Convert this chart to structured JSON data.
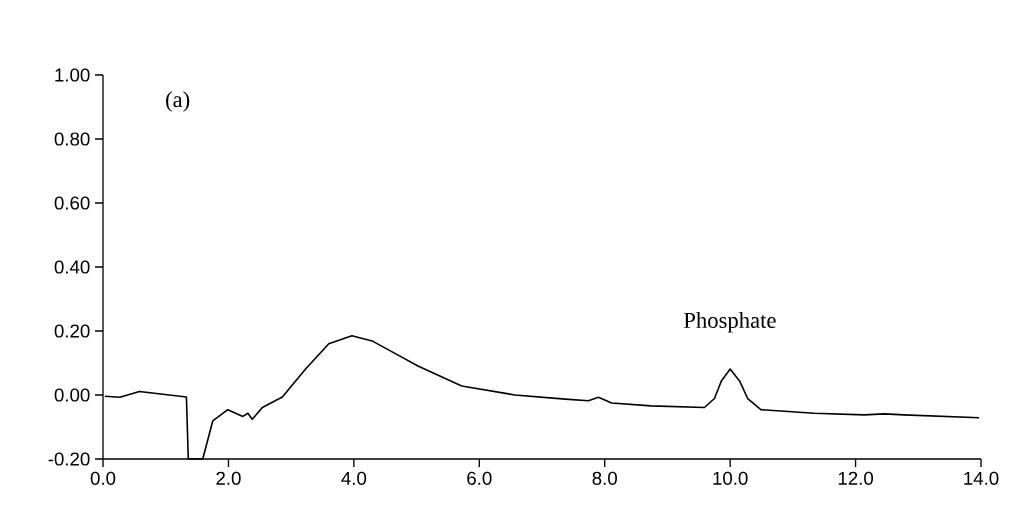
{
  "chart_data": {
    "type": "line",
    "x": [
      0.03,
      0.27,
      0.58,
      1.33,
      1.36,
      1.59,
      1.75,
      1.99,
      2.23,
      2.31,
      2.38,
      2.54,
      2.86,
      3.23,
      3.6,
      3.97,
      4.29,
      4.72,
      5.03,
      5.72,
      6.57,
      7.37,
      7.74,
      7.9,
      8.11,
      8.74,
      9.59,
      9.75,
      9.86,
      10.0,
      10.15,
      10.28,
      10.49,
      11.34,
      12.14,
      12.46,
      12.77,
      13.97
    ],
    "series": [
      {
        "color": "#000000",
        "values": [
          -0.004,
          -0.007,
          0.011,
          -0.006,
          -0.2,
          -0.2,
          -0.081,
          -0.046,
          -0.067,
          -0.057,
          -0.076,
          -0.039,
          -0.006,
          0.081,
          0.16,
          0.185,
          0.169,
          0.123,
          0.09,
          0.028,
          0.0,
          -0.013,
          -0.018,
          -0.007,
          -0.025,
          -0.034,
          -0.039,
          -0.011,
          0.044,
          0.081,
          0.044,
          -0.011,
          -0.046,
          -0.057,
          -0.062,
          -0.059,
          -0.062,
          -0.071
        ]
      }
    ],
    "xlim": [
      0,
      14
    ],
    "ylim": [
      -0.2,
      1.0
    ],
    "xticks": [
      {
        "value": 0,
        "label": "0.0"
      },
      {
        "value": 2,
        "label": "2.0"
      },
      {
        "value": 4,
        "label": "4.0"
      },
      {
        "value": 6,
        "label": "6.0"
      },
      {
        "value": 8,
        "label": "8.0"
      },
      {
        "value": 10,
        "label": "10.0"
      },
      {
        "value": 12,
        "label": "12.0"
      },
      {
        "value": 14,
        "label": "14.0"
      }
    ],
    "yticks": [
      {
        "value": -0.2,
        "label": "-0.20"
      },
      {
        "value": 0,
        "label": "0.00"
      },
      {
        "value": 0.2,
        "label": "0.20"
      },
      {
        "value": 0.4,
        "label": "0.40"
      },
      {
        "value": 0.6,
        "label": "0.60"
      },
      {
        "value": 0.8,
        "label": "0.80"
      },
      {
        "value": 1.0,
        "label": "1.00"
      }
    ],
    "annotations": [
      "(a)",
      "Phosphate"
    ],
    "grid": false,
    "marker": "none",
    "line_style": "solid"
  }
}
